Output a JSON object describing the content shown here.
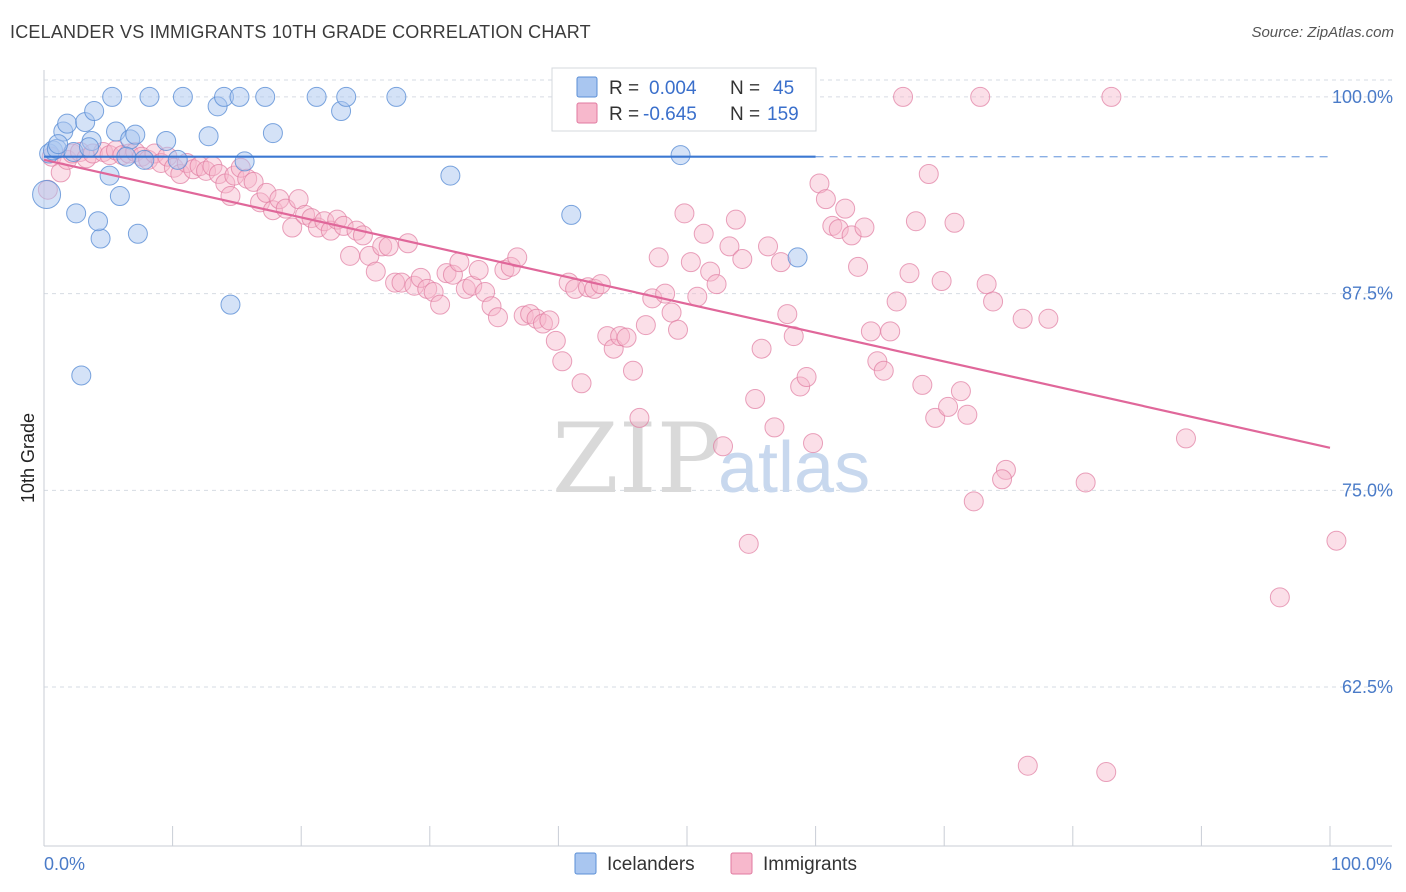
{
  "header": {
    "title": "ICELANDER VS IMMIGRANTS 10TH GRADE CORRELATION CHART",
    "source": "Source: ZipAtlas.com"
  },
  "legend": {
    "r_label": "R =",
    "n_label": "N =",
    "icelanders": {
      "r": "0.004",
      "n": "45"
    },
    "immigrants": {
      "r": "-0.645",
      "n": "159"
    }
  },
  "bottom_legend": {
    "icelanders": "Icelanders",
    "immigrants": "Immigrants"
  },
  "watermark": {
    "zip": "ZIP",
    "atlas": "atlas"
  },
  "colors": {
    "icelanders_fill": "#a9c6f0",
    "icelanders_stroke": "#5b8fd6",
    "icelanders_line": "#3b78d2",
    "immigrants_fill": "#f7b8cc",
    "immigrants_stroke": "#e07aa0",
    "immigrants_line": "#e0679a",
    "grid": "#d6dbe3",
    "tick_text": "#4a7bc8"
  },
  "chart_data": {
    "type": "scatter",
    "title": "ICELANDER VS IMMIGRANTS 10TH GRADE CORRELATION CHART",
    "xlabel": "",
    "ylabel": "10th Grade",
    "xlim": [
      0,
      100
    ],
    "ylim": [
      52.4,
      101.2
    ],
    "x_tick_labels": [
      "0.0%",
      "100.0%"
    ],
    "y_ticks": [
      62.5,
      75.0,
      87.5,
      100.0
    ],
    "y_tick_labels": [
      "62.5%",
      "75.0%",
      "87.5%",
      "100.0%"
    ],
    "grid": true,
    "legend_position": "top-center",
    "series": [
      {
        "name": "Icelanders",
        "r": 0.004,
        "n": 45,
        "trend": {
          "x": [
            0,
            60
          ],
          "y": [
            96.2,
            96.2
          ],
          "dashed_extension_to": 100
        },
        "points": [
          [
            0.2,
            93.8
          ],
          [
            0.4,
            96.4
          ],
          [
            0.7,
            96.6
          ],
          [
            1.0,
            96.7
          ],
          [
            1.5,
            97.8
          ],
          [
            1.8,
            98.3
          ],
          [
            2.3,
            96.5
          ],
          [
            2.5,
            92.6
          ],
          [
            3.2,
            98.4
          ],
          [
            3.7,
            97.2
          ],
          [
            3.9,
            99.1
          ],
          [
            4.4,
            91.0
          ],
          [
            4.2,
            92.1
          ],
          [
            5.1,
            95.0
          ],
          [
            5.3,
            100.0
          ],
          [
            5.6,
            97.8
          ],
          [
            5.9,
            93.7
          ],
          [
            6.7,
            97.3
          ],
          [
            7.1,
            97.6
          ],
          [
            7.3,
            91.3
          ],
          [
            7.8,
            96.0
          ],
          [
            8.2,
            100.0
          ],
          [
            9.5,
            97.2
          ],
          [
            10.4,
            96.0
          ],
          [
            10.8,
            100.0
          ],
          [
            12.8,
            97.5
          ],
          [
            13.5,
            99.4
          ],
          [
            14.0,
            100.0
          ],
          [
            15.2,
            100.0
          ],
          [
            17.2,
            100.0
          ],
          [
            14.5,
            86.8
          ],
          [
            15.6,
            95.9
          ],
          [
            17.8,
            97.7
          ],
          [
            21.2,
            100.0
          ],
          [
            23.1,
            99.1
          ],
          [
            23.5,
            100.0
          ],
          [
            27.4,
            100.0
          ],
          [
            31.6,
            95.0
          ],
          [
            41.0,
            92.5
          ],
          [
            49.5,
            96.3
          ],
          [
            58.6,
            89.8
          ],
          [
            2.9,
            82.3
          ],
          [
            1.1,
            97.0
          ],
          [
            3.5,
            96.8
          ],
          [
            6.4,
            96.2
          ]
        ]
      },
      {
        "name": "Immigrants",
        "r": -0.645,
        "n": 159,
        "trend": {
          "x": [
            0,
            100
          ],
          "y": [
            96.0,
            77.7
          ]
        },
        "points": [
          [
            0.3,
            94.1
          ],
          [
            0.6,
            96.2
          ],
          [
            1.3,
            95.2
          ],
          [
            1.8,
            96.0
          ],
          [
            2.2,
            96.4
          ],
          [
            2.8,
            96.5
          ],
          [
            3.3,
            96.1
          ],
          [
            3.8,
            96.4
          ],
          [
            4.6,
            96.5
          ],
          [
            5.1,
            96.3
          ],
          [
            5.6,
            96.6
          ],
          [
            6.1,
            96.3
          ],
          [
            6.6,
            96.4
          ],
          [
            7.1,
            96.5
          ],
          [
            7.6,
            96.2
          ],
          [
            8.1,
            96.0
          ],
          [
            8.6,
            96.4
          ],
          [
            9.1,
            95.8
          ],
          [
            9.6,
            96.2
          ],
          [
            10.1,
            95.5
          ],
          [
            10.6,
            95.1
          ],
          [
            11.1,
            95.8
          ],
          [
            11.6,
            95.4
          ],
          [
            12.1,
            95.6
          ],
          [
            12.6,
            95.3
          ],
          [
            13.1,
            95.6
          ],
          [
            13.6,
            95.1
          ],
          [
            14.1,
            94.5
          ],
          [
            14.5,
            93.7
          ],
          [
            14.8,
            95.0
          ],
          [
            15.3,
            95.5
          ],
          [
            15.8,
            94.8
          ],
          [
            16.3,
            94.6
          ],
          [
            16.8,
            93.3
          ],
          [
            17.3,
            93.9
          ],
          [
            17.8,
            92.8
          ],
          [
            18.3,
            93.5
          ],
          [
            18.8,
            92.9
          ],
          [
            19.3,
            91.7
          ],
          [
            19.8,
            93.5
          ],
          [
            20.3,
            92.5
          ],
          [
            20.8,
            92.3
          ],
          [
            21.3,
            91.7
          ],
          [
            21.8,
            92.1
          ],
          [
            22.3,
            91.5
          ],
          [
            22.8,
            92.2
          ],
          [
            23.3,
            91.8
          ],
          [
            23.8,
            89.9
          ],
          [
            24.3,
            91.5
          ],
          [
            24.8,
            91.2
          ],
          [
            25.3,
            89.9
          ],
          [
            25.8,
            88.9
          ],
          [
            26.3,
            90.5
          ],
          [
            26.8,
            90.5
          ],
          [
            27.3,
            88.2
          ],
          [
            27.8,
            88.2
          ],
          [
            28.3,
            90.7
          ],
          [
            28.8,
            88.0
          ],
          [
            29.3,
            88.5
          ],
          [
            29.8,
            87.8
          ],
          [
            30.3,
            87.6
          ],
          [
            30.8,
            86.8
          ],
          [
            31.3,
            88.8
          ],
          [
            31.8,
            88.7
          ],
          [
            32.3,
            89.5
          ],
          [
            32.8,
            87.8
          ],
          [
            33.3,
            88.0
          ],
          [
            33.8,
            89.0
          ],
          [
            34.3,
            87.6
          ],
          [
            34.8,
            86.7
          ],
          [
            35.3,
            86.0
          ],
          [
            35.8,
            89.0
          ],
          [
            36.3,
            89.2
          ],
          [
            36.8,
            89.8
          ],
          [
            37.3,
            86.1
          ],
          [
            37.8,
            86.2
          ],
          [
            38.3,
            85.9
          ],
          [
            38.8,
            85.6
          ],
          [
            39.3,
            85.8
          ],
          [
            39.8,
            84.5
          ],
          [
            40.3,
            83.2
          ],
          [
            40.8,
            88.2
          ],
          [
            41.3,
            87.8
          ],
          [
            41.8,
            81.8
          ],
          [
            42.3,
            87.9
          ],
          [
            42.8,
            87.8
          ],
          [
            43.3,
            88.1
          ],
          [
            43.8,
            84.8
          ],
          [
            44.3,
            84.0
          ],
          [
            44.8,
            84.8
          ],
          [
            45.3,
            84.7
          ],
          [
            45.8,
            82.6
          ],
          [
            46.3,
            79.6
          ],
          [
            46.8,
            85.5
          ],
          [
            47.3,
            87.2
          ],
          [
            47.8,
            89.8
          ],
          [
            48.3,
            87.5
          ],
          [
            48.8,
            86.3
          ],
          [
            49.3,
            85.2
          ],
          [
            49.8,
            92.6
          ],
          [
            50.3,
            89.5
          ],
          [
            50.8,
            87.3
          ],
          [
            51.3,
            91.3
          ],
          [
            51.8,
            88.9
          ],
          [
            52.3,
            88.1
          ],
          [
            52.8,
            77.8
          ],
          [
            53.3,
            90.5
          ],
          [
            53.8,
            92.2
          ],
          [
            54.3,
            89.7
          ],
          [
            54.8,
            71.6
          ],
          [
            55.3,
            80.8
          ],
          [
            55.8,
            84.0
          ],
          [
            56.3,
            90.5
          ],
          [
            56.8,
            79.0
          ],
          [
            57.3,
            89.5
          ],
          [
            57.8,
            86.2
          ],
          [
            58.3,
            84.8
          ],
          [
            58.8,
            81.6
          ],
          [
            59.3,
            82.2
          ],
          [
            59.8,
            78.0
          ],
          [
            60.3,
            94.5
          ],
          [
            60.8,
            93.5
          ],
          [
            61.3,
            91.8
          ],
          [
            61.8,
            91.6
          ],
          [
            62.3,
            92.9
          ],
          [
            62.8,
            91.2
          ],
          [
            63.3,
            89.2
          ],
          [
            63.8,
            91.7
          ],
          [
            64.3,
            85.1
          ],
          [
            64.8,
            83.2
          ],
          [
            65.3,
            82.6
          ],
          [
            65.8,
            85.1
          ],
          [
            66.3,
            87.0
          ],
          [
            66.8,
            100.0
          ],
          [
            67.3,
            88.8
          ],
          [
            67.8,
            92.1
          ],
          [
            68.3,
            81.7
          ],
          [
            68.8,
            95.1
          ],
          [
            69.3,
            79.6
          ],
          [
            69.8,
            88.3
          ],
          [
            70.3,
            80.3
          ],
          [
            70.8,
            92.0
          ],
          [
            71.3,
            81.3
          ],
          [
            71.8,
            79.8
          ],
          [
            72.3,
            74.3
          ],
          [
            72.8,
            100.0
          ],
          [
            73.3,
            88.1
          ],
          [
            73.8,
            87.0
          ],
          [
            74.8,
            76.3
          ],
          [
            76.1,
            85.9
          ],
          [
            78.1,
            85.9
          ],
          [
            81.0,
            75.5
          ],
          [
            83.0,
            100.0
          ],
          [
            88.8,
            78.3
          ],
          [
            96.1,
            68.2
          ],
          [
            100.5,
            71.8
          ],
          [
            82.6,
            57.1
          ],
          [
            76.5,
            57.5
          ],
          [
            74.5,
            75.7
          ]
        ]
      }
    ]
  }
}
